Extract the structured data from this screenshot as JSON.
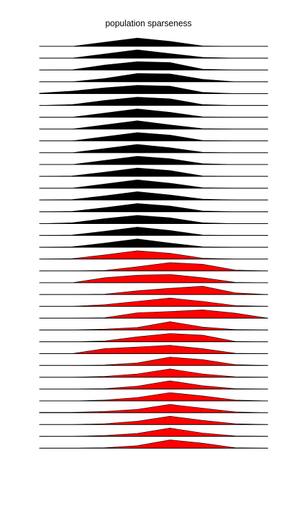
{
  "chart_data": {
    "type": "area",
    "title": "population sparseness",
    "xlabel": "",
    "ylabel": "",
    "grid": false,
    "legend": "none",
    "colors": {
      "group_1": "#000000",
      "group_2": "#ff0000",
      "baseline": "#000000",
      "background": "#ffffff"
    },
    "x": [
      1,
      2,
      3,
      4,
      5,
      6,
      7,
      8
    ],
    "xlim": [
      1,
      8
    ],
    "series": [
      {
        "group": 1,
        "values": [
          0,
          0,
          0.5,
          1.0,
          0.6,
          0.05,
          0,
          0
        ]
      },
      {
        "group": 1,
        "values": [
          0,
          0,
          0.5,
          1.0,
          0.55,
          0.1,
          0,
          0
        ]
      },
      {
        "group": 1,
        "values": [
          0,
          0.02,
          0.6,
          1.0,
          0.9,
          0.1,
          0,
          0
        ]
      },
      {
        "group": 1,
        "values": [
          0,
          0,
          0.4,
          1.0,
          0.95,
          0.3,
          0,
          0
        ]
      },
      {
        "group": 1,
        "values": [
          0.05,
          0.3,
          0.7,
          1.0,
          0.9,
          0.15,
          0,
          0
        ]
      },
      {
        "group": 1,
        "values": [
          0,
          0.1,
          0.6,
          1.0,
          0.8,
          0.1,
          0,
          0
        ]
      },
      {
        "group": 1,
        "values": [
          0,
          0,
          0.5,
          1.0,
          0.6,
          0.05,
          0,
          0
        ]
      },
      {
        "group": 1,
        "values": [
          0,
          0,
          0.5,
          1.0,
          0.5,
          0.05,
          0,
          0
        ]
      },
      {
        "group": 1,
        "values": [
          0,
          0,
          0.5,
          1.0,
          0.7,
          0.05,
          0,
          0
        ]
      },
      {
        "group": 1,
        "values": [
          0,
          0,
          0.5,
          1.0,
          0.6,
          0.05,
          0,
          0
        ]
      },
      {
        "group": 1,
        "values": [
          0,
          0,
          0.5,
          1.0,
          0.7,
          0.1,
          0,
          0
        ]
      },
      {
        "group": 1,
        "values": [
          0,
          0.05,
          0.5,
          1.0,
          0.7,
          0.05,
          0,
          0
        ]
      },
      {
        "group": 1,
        "values": [
          0,
          0,
          0.5,
          1.0,
          0.6,
          0.05,
          0,
          0
        ]
      },
      {
        "group": 1,
        "values": [
          0,
          0.05,
          0.5,
          1.0,
          0.6,
          0.1,
          0,
          0
        ]
      },
      {
        "group": 1,
        "values": [
          0,
          0.05,
          0.5,
          1.0,
          0.7,
          0.1,
          0,
          0
        ]
      },
      {
        "group": 1,
        "values": [
          0,
          0.1,
          0.6,
          1.0,
          0.7,
          0.1,
          0,
          0
        ]
      },
      {
        "group": 1,
        "values": [
          0,
          0.05,
          0.5,
          1.0,
          0.6,
          0.05,
          0,
          0
        ]
      },
      {
        "group": 1,
        "values": [
          0,
          0.05,
          0.5,
          1.0,
          0.5,
          0.05,
          0,
          0
        ]
      },
      {
        "group": 2,
        "values": [
          0,
          0.05,
          0.5,
          1.0,
          0.7,
          0.1,
          0,
          0
        ]
      },
      {
        "group": 2,
        "values": [
          0,
          0,
          0.05,
          0.5,
          1.0,
          0.8,
          0.1,
          0
        ]
      },
      {
        "group": 2,
        "values": [
          0,
          0,
          0.6,
          0.9,
          1.0,
          0.6,
          0.05,
          0
        ]
      },
      {
        "group": 2,
        "values": [
          0,
          0,
          0.05,
          0.45,
          0.75,
          1.0,
          0.2,
          0
        ]
      },
      {
        "group": 2,
        "values": [
          0,
          0,
          0.2,
          0.6,
          1.0,
          0.6,
          0.1,
          0
        ]
      },
      {
        "group": 2,
        "values": [
          0,
          0,
          0.05,
          0.65,
          0.8,
          1.0,
          0.6,
          0
        ]
      },
      {
        "group": 2,
        "values": [
          0,
          0,
          0.1,
          0.3,
          1.0,
          0.35,
          0.05,
          0
        ]
      },
      {
        "group": 2,
        "values": [
          0,
          0,
          0.1,
          0.6,
          1.0,
          0.8,
          0.05,
          0
        ]
      },
      {
        "group": 2,
        "values": [
          0,
          0,
          0.6,
          0.8,
          1.0,
          0.6,
          0.05,
          0
        ]
      },
      {
        "group": 2,
        "values": [
          0,
          0,
          0.05,
          0.3,
          1.0,
          0.7,
          0.1,
          0
        ]
      },
      {
        "group": 2,
        "values": [
          0,
          0,
          0.1,
          0.4,
          1.0,
          0.4,
          0.05,
          0
        ]
      },
      {
        "group": 2,
        "values": [
          0,
          0,
          0.05,
          0.35,
          1.0,
          0.4,
          0.05,
          0
        ]
      },
      {
        "group": 2,
        "values": [
          0,
          0,
          0.1,
          0.4,
          1.0,
          0.6,
          0.1,
          0
        ]
      },
      {
        "group": 2,
        "values": [
          0.05,
          0.05,
          0.15,
          0.4,
          1.0,
          0.55,
          0.1,
          0
        ]
      },
      {
        "group": 2,
        "values": [
          0,
          0,
          0.1,
          0.4,
          1.0,
          0.5,
          0.1,
          0
        ]
      },
      {
        "group": 2,
        "values": [
          0,
          0,
          0.1,
          0.35,
          1.0,
          0.4,
          0.05,
          0
        ]
      },
      {
        "group": 2,
        "values": [
          0,
          0,
          0.05,
          0.3,
          1.0,
          0.6,
          0.05,
          0
        ]
      }
    ]
  }
}
